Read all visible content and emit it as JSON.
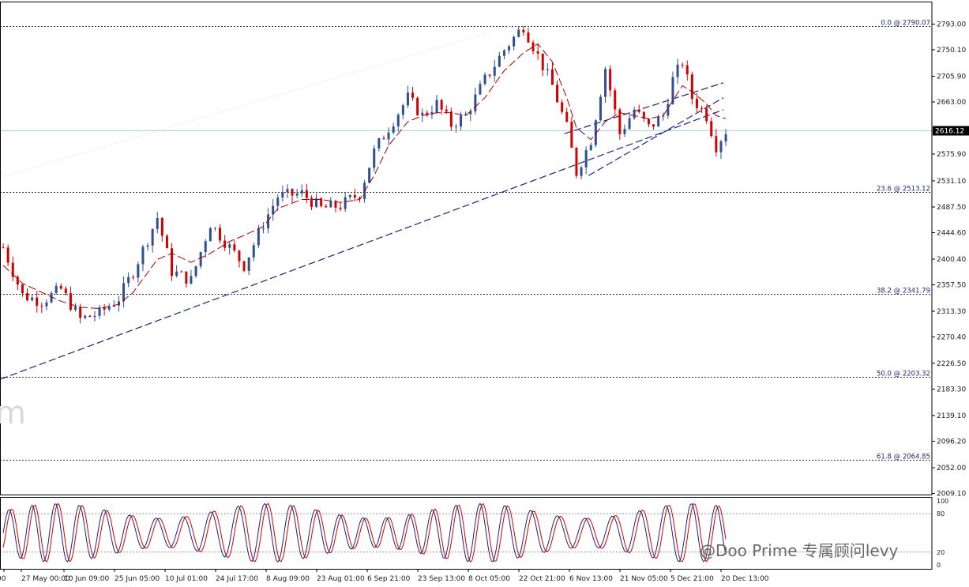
{
  "chart_data": {
    "type": "candlestick",
    "price_axis": {
      "ylim": [
        2009.1,
        2793.0
      ],
      "ticks": [
        "2793.00",
        "2750.10",
        "2705.90",
        "2663.00",
        "2616.12",
        "2575.90",
        "2531.10",
        "2487.50",
        "2444.60",
        "2400.40",
        "2357.50",
        "2313.30",
        "2270.40",
        "2226.50",
        "2183.30",
        "2139.10",
        "2096.20",
        "2052.00",
        "2009.10"
      ],
      "current_price": "2616.12"
    },
    "time_axis": {
      "labels": [
        "00",
        "27 May 00:00",
        "10 Jun 09:00",
        "25 Jun 05:00",
        "10 Jul 01:00",
        "24 Jul 17:00",
        "8 Aug 09:00",
        "23 Aug 01:00",
        "6 Sep 21:00",
        "23 Sep 13:00",
        "8 Oct 05:00",
        "22 Oct 21:00",
        "6 Nov 13:00",
        "21 Nov 05:00",
        "5 Dec 21:00",
        "20 Dec 13:00"
      ]
    },
    "fibonacci_levels": [
      {
        "ratio": "0.0",
        "price": 2790.07,
        "label": "0.0 @ 2790.07"
      },
      {
        "ratio": "23.6",
        "price": 2513.12,
        "label": "23.6 @ 2513.12"
      },
      {
        "ratio": "38.2",
        "price": 2341.79,
        "label": "38.2 @ 2341.79"
      },
      {
        "ratio": "50.0",
        "price": 2203.32,
        "label": "50.0 @ 2203.32"
      },
      {
        "ratio": "61.8",
        "price": 2064.85,
        "label": "61.8 @ 2064.85"
      }
    ],
    "price_path": [
      [
        0,
        2420
      ],
      [
        4,
        2340
      ],
      [
        8,
        2330
      ],
      [
        12,
        2350
      ],
      [
        16,
        2300
      ],
      [
        20,
        2310
      ],
      [
        24,
        2335
      ],
      [
        27,
        2380
      ],
      [
        32,
        2470
      ],
      [
        35,
        2380
      ],
      [
        39,
        2365
      ],
      [
        43,
        2460
      ],
      [
        47,
        2420
      ],
      [
        50,
        2390
      ],
      [
        54,
        2460
      ],
      [
        57,
        2505
      ],
      [
        62,
        2510
      ],
      [
        66,
        2485
      ],
      [
        70,
        2490
      ],
      [
        74,
        2510
      ],
      [
        77,
        2580
      ],
      [
        80,
        2620
      ],
      [
        84,
        2670
      ],
      [
        87,
        2640
      ],
      [
        90,
        2660
      ],
      [
        93,
        2625
      ],
      [
        96,
        2640
      ],
      [
        100,
        2700
      ],
      [
        104,
        2750
      ],
      [
        108,
        2790
      ],
      [
        111,
        2740
      ],
      [
        114,
        2690
      ],
      [
        117,
        2620
      ],
      [
        119,
        2545
      ],
      [
        122,
        2600
      ],
      [
        125,
        2720
      ],
      [
        128,
        2610
      ],
      [
        131,
        2650
      ],
      [
        134,
        2620
      ],
      [
        137,
        2640
      ],
      [
        139,
        2700
      ],
      [
        141,
        2730
      ],
      [
        143,
        2670
      ],
      [
        146,
        2640
      ],
      [
        148,
        2590
      ],
      [
        150,
        2615
      ]
    ],
    "moving_average_path": [
      [
        0,
        2390
      ],
      [
        4,
        2360
      ],
      [
        8,
        2345
      ],
      [
        12,
        2330
      ],
      [
        16,
        2320
      ],
      [
        20,
        2318
      ],
      [
        24,
        2325
      ],
      [
        27,
        2345
      ],
      [
        32,
        2400
      ],
      [
        35,
        2410
      ],
      [
        39,
        2395
      ],
      [
        43,
        2410
      ],
      [
        47,
        2430
      ],
      [
        50,
        2440
      ],
      [
        54,
        2455
      ],
      [
        57,
        2485
      ],
      [
        62,
        2500
      ],
      [
        66,
        2500
      ],
      [
        70,
        2495
      ],
      [
        74,
        2500
      ],
      [
        77,
        2540
      ],
      [
        80,
        2590
      ],
      [
        84,
        2630
      ],
      [
        87,
        2640
      ],
      [
        90,
        2645
      ],
      [
        93,
        2645
      ],
      [
        96,
        2640
      ],
      [
        100,
        2670
      ],
      [
        104,
        2715
      ],
      [
        108,
        2745
      ],
      [
        111,
        2760
      ],
      [
        114,
        2730
      ],
      [
        117,
        2670
      ],
      [
        119,
        2620
      ],
      [
        122,
        2600
      ],
      [
        125,
        2630
      ],
      [
        128,
        2645
      ],
      [
        131,
        2640
      ],
      [
        134,
        2635
      ],
      [
        137,
        2640
      ],
      [
        139,
        2665
      ],
      [
        141,
        2690
      ],
      [
        143,
        2680
      ],
      [
        146,
        2660
      ],
      [
        148,
        2640
      ],
      [
        150,
        2635
      ]
    ],
    "trendlines": [
      {
        "from": [
          0,
          2200
        ],
        "to": [
          150,
          2650
        ]
      },
      {
        "from": [
          122,
          2540
        ],
        "to": [
          150,
          2670
        ]
      },
      {
        "from": [
          117,
          2610
        ],
        "to": [
          150,
          2695
        ]
      }
    ],
    "oscillator": {
      "name": "stochastic",
      "ylim": [
        0,
        100
      ],
      "ticks": [
        "100",
        "80",
        "20",
        "0"
      ],
      "levels": [
        80,
        20
      ],
      "period_bars": 5.2
    },
    "watermark": "@Doo Prime 专属顾问levy",
    "corner_mark": "m"
  }
}
